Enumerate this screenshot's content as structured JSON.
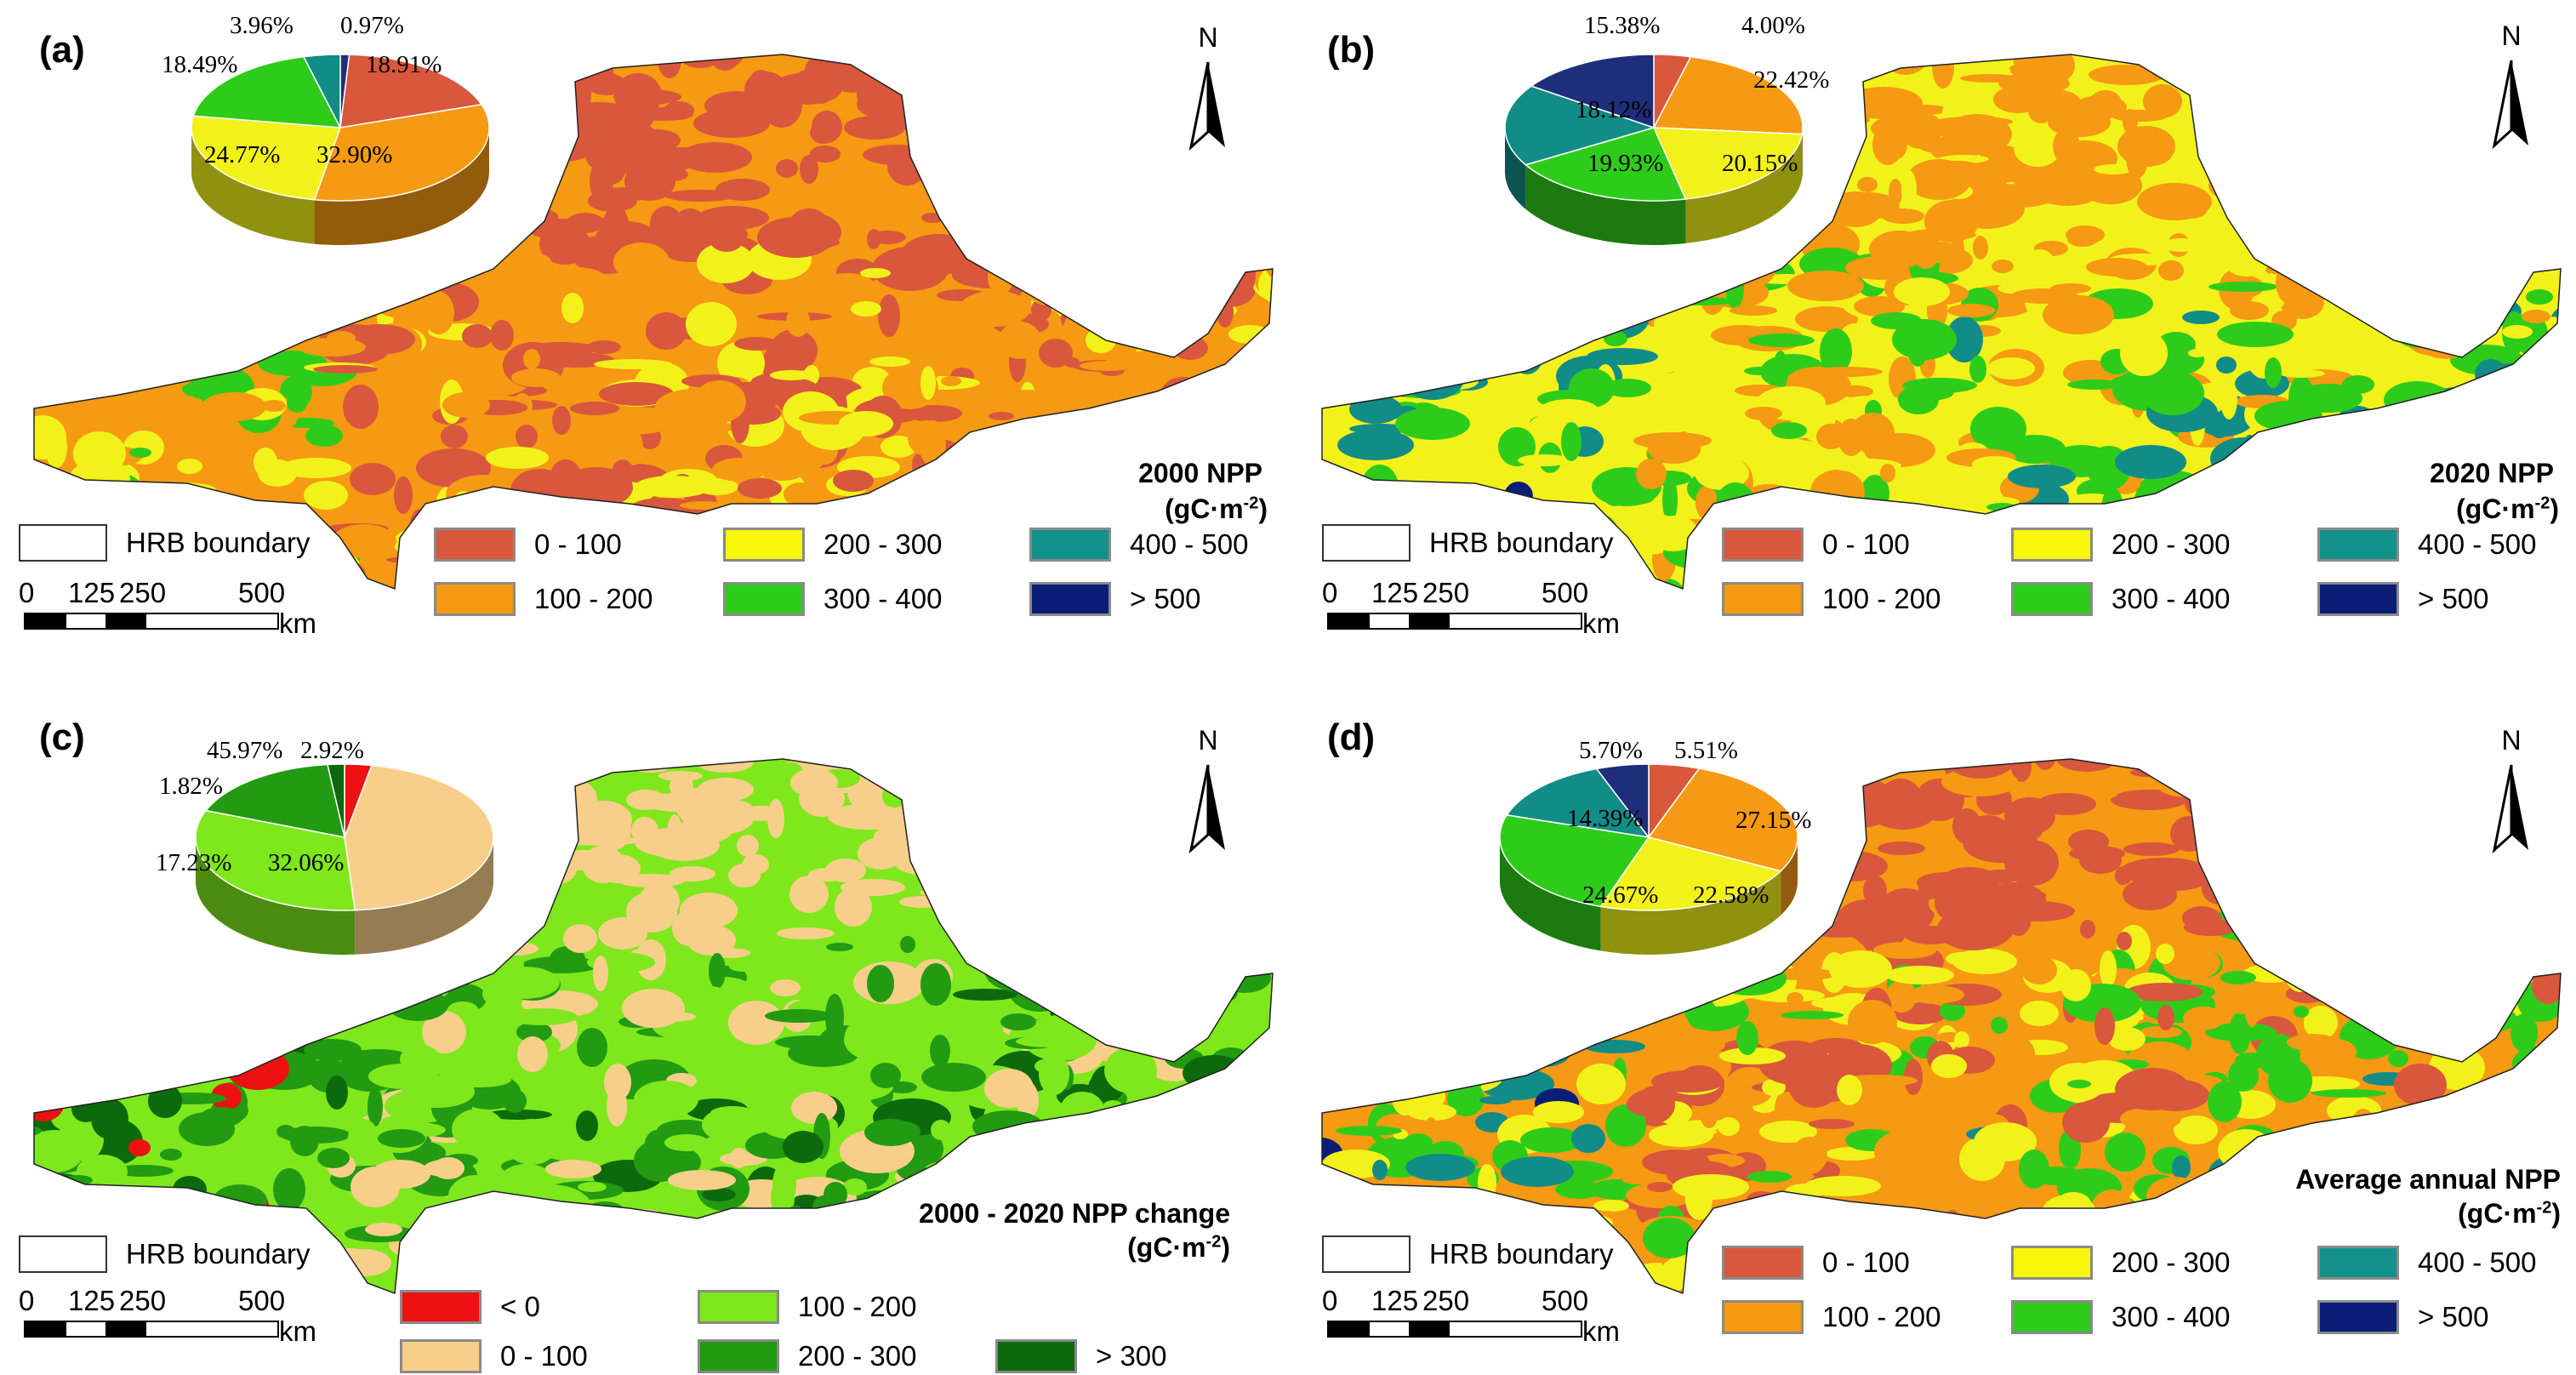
{
  "panels": [
    {
      "label": "(a)",
      "title": "2000 NPP",
      "unit": "gC·m",
      "unit_sup": "-2",
      "pie": [
        {
          "value": 0.97,
          "label": "0.97%",
          "color": "#1f2e7a"
        },
        {
          "value": 18.91,
          "label": "18.91%",
          "color": "#d9573c"
        },
        {
          "value": 32.9,
          "label": "32.90%",
          "color": "#f59a12"
        },
        {
          "value": 24.77,
          "label": "24.77%",
          "color": "#f2f21a"
        },
        {
          "value": 18.49,
          "label": "18.49%",
          "color": "#2ecc1a"
        },
        {
          "value": 3.96,
          "label": "3.96%",
          "color": "#128c86"
        }
      ],
      "legend": [
        {
          "label": "0 - 100",
          "color": "#d9573c"
        },
        {
          "label": "100 - 200",
          "color": "#f59a12"
        },
        {
          "label": "200 - 300",
          "color": "#f7f709"
        },
        {
          "label": "300 - 400",
          "color": "#2ecc1a"
        },
        {
          "label": "400 - 500",
          "color": "#12918a"
        },
        {
          "label": "> 500",
          "color": "#0a1e78"
        }
      ]
    },
    {
      "label": "(b)",
      "title": "2020 NPP",
      "unit": "gC·m",
      "unit_sup": "-2",
      "pie": [
        {
          "value": 4.0,
          "label": "4.00%",
          "color": "#d9573c"
        },
        {
          "value": 22.42,
          "label": "22.42%",
          "color": "#f59a12"
        },
        {
          "value": 20.15,
          "label": "20.15%",
          "color": "#f2f21a"
        },
        {
          "value": 19.93,
          "label": "19.93%",
          "color": "#2ecc1a"
        },
        {
          "value": 18.12,
          "label": "18.12%",
          "color": "#128c86"
        },
        {
          "value": 15.38,
          "label": "15.38%",
          "color": "#1f2e7a"
        }
      ],
      "legend": [
        {
          "label": "0 - 100",
          "color": "#d9573c"
        },
        {
          "label": "100 - 200",
          "color": "#f59a12"
        },
        {
          "label": "200 - 300",
          "color": "#f7f709"
        },
        {
          "label": "300 - 400",
          "color": "#2ecc1a"
        },
        {
          "label": "400 - 500",
          "color": "#12918a"
        },
        {
          "label": "> 500",
          "color": "#0a1e78"
        }
      ]
    },
    {
      "label": "(c)",
      "title": "2000 - 2020 NPP change",
      "unit": "gC·m",
      "unit_sup": "-2",
      "pie": [
        {
          "value": 2.92,
          "label": "2.92%",
          "color": "#ee1111"
        },
        {
          "value": 45.97,
          "label": "45.97%",
          "color": "#f8cf8a"
        },
        {
          "value": 32.06,
          "label": "32.06%",
          "color": "#7ee81c"
        },
        {
          "value": 17.23,
          "label": "17.23%",
          "color": "#229a12"
        },
        {
          "value": 1.82,
          "label": "1.82%",
          "color": "#0c6a0c"
        }
      ],
      "legend": [
        {
          "label": "< 0",
          "color": "#ee1111"
        },
        {
          "label": "0 - 100",
          "color": "#f8cf8a"
        },
        {
          "label": "100 - 200",
          "color": "#7ee81c"
        },
        {
          "label": "200 - 300",
          "color": "#229a12"
        },
        {
          "label": "> 300",
          "color": "#0c6a0c"
        }
      ]
    },
    {
      "label": "(d)",
      "title": "Average annual NPP",
      "unit": "gC·m",
      "unit_sup": "-2",
      "pie": [
        {
          "value": 5.51,
          "label": "5.51%",
          "color": "#d9573c"
        },
        {
          "value": 27.15,
          "label": "27.15%",
          "color": "#f59a12"
        },
        {
          "value": 22.58,
          "label": "22.58%",
          "color": "#f2f21a"
        },
        {
          "value": 24.67,
          "label": "24.67%",
          "color": "#2ecc1a"
        },
        {
          "value": 14.39,
          "label": "14.39%",
          "color": "#128c86"
        },
        {
          "value": 5.7,
          "label": "5.70%",
          "color": "#1f2e7a"
        }
      ],
      "legend": [
        {
          "label": "0 - 100",
          "color": "#d9573c"
        },
        {
          "label": "100 - 200",
          "color": "#f59a12"
        },
        {
          "label": "200 - 300",
          "color": "#f7f709"
        },
        {
          "label": "300 - 400",
          "color": "#2ecc1a"
        },
        {
          "label": "400 - 500",
          "color": "#12918a"
        },
        {
          "label": "> 500",
          "color": "#0a1e78"
        }
      ]
    }
  ],
  "common": {
    "north": "N",
    "boundary_label": "HRB boundary",
    "scale_ticks": [
      "0",
      "125",
      "250",
      "500"
    ],
    "scale_unit": "km"
  },
  "map_colors": {
    "a": [
      "#d9573c",
      "#f59a12",
      "#f2f21a",
      "#2ecc1a"
    ],
    "b": [
      "#f59a12",
      "#f2f21a",
      "#2ecc1a",
      "#128c86",
      "#0a1e78"
    ],
    "c": [
      "#f8cf8a",
      "#7ee81c",
      "#229a12",
      "#0c6a0c",
      "#ee1111"
    ],
    "d": [
      "#d9573c",
      "#f59a12",
      "#f2f21a",
      "#2ecc1a",
      "#128c86",
      "#0a1e78"
    ]
  }
}
